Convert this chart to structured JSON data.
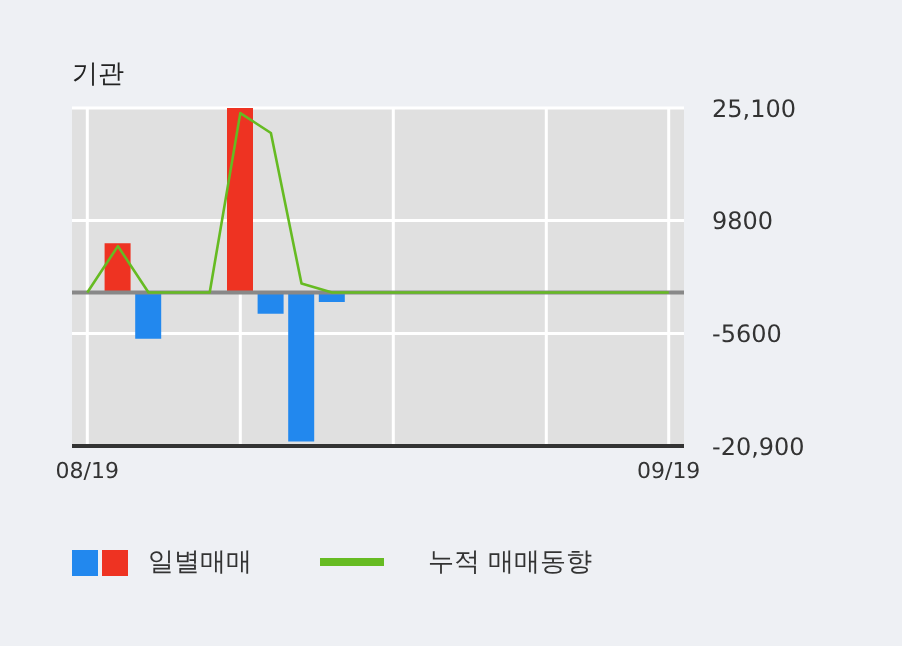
{
  "chart_data": {
    "type": "bar",
    "title": "기관",
    "categories": [
      "08/19",
      null,
      null,
      null,
      null,
      null,
      null,
      null,
      null,
      null,
      null,
      null,
      null,
      null,
      null,
      null,
      null,
      null,
      null,
      "09/19"
    ],
    "series": [
      {
        "name": "일별매매",
        "values": [
          null,
          6700,
          -6300,
          null,
          null,
          25100,
          -2900,
          -20300,
          -1300,
          null,
          null,
          null,
          null,
          null,
          null,
          null,
          null,
          null,
          null,
          null
        ],
        "colors": [
          null,
          "#ee3322",
          "#2288ee",
          null,
          null,
          "#ee3322",
          "#2288ee",
          "#2288ee",
          "#2288ee",
          null,
          null,
          null,
          null,
          null,
          null,
          null,
          null,
          null,
          null,
          null
        ]
      },
      {
        "name": "누적 매매동향",
        "type": "line",
        "color": "#66bb22",
        "values": [
          0,
          6300,
          0,
          0,
          0,
          24400,
          21700,
          1200,
          0,
          0,
          0,
          0,
          0,
          0,
          0,
          0,
          0,
          0,
          0,
          0
        ]
      }
    ],
    "ylim": [
      -20900,
      25100
    ],
    "yticks": [
      {
        "value": 25100,
        "label": "25,100"
      },
      9800,
      -5600,
      {
        "value": -20900,
        "label": "-20,900"
      }
    ],
    "ref_lines": [
      {
        "axis": "y",
        "value": 0,
        "color": "#888888"
      }
    ],
    "grid": true,
    "legend": "bottom",
    "marker": "none",
    "line_style": "solid"
  }
}
